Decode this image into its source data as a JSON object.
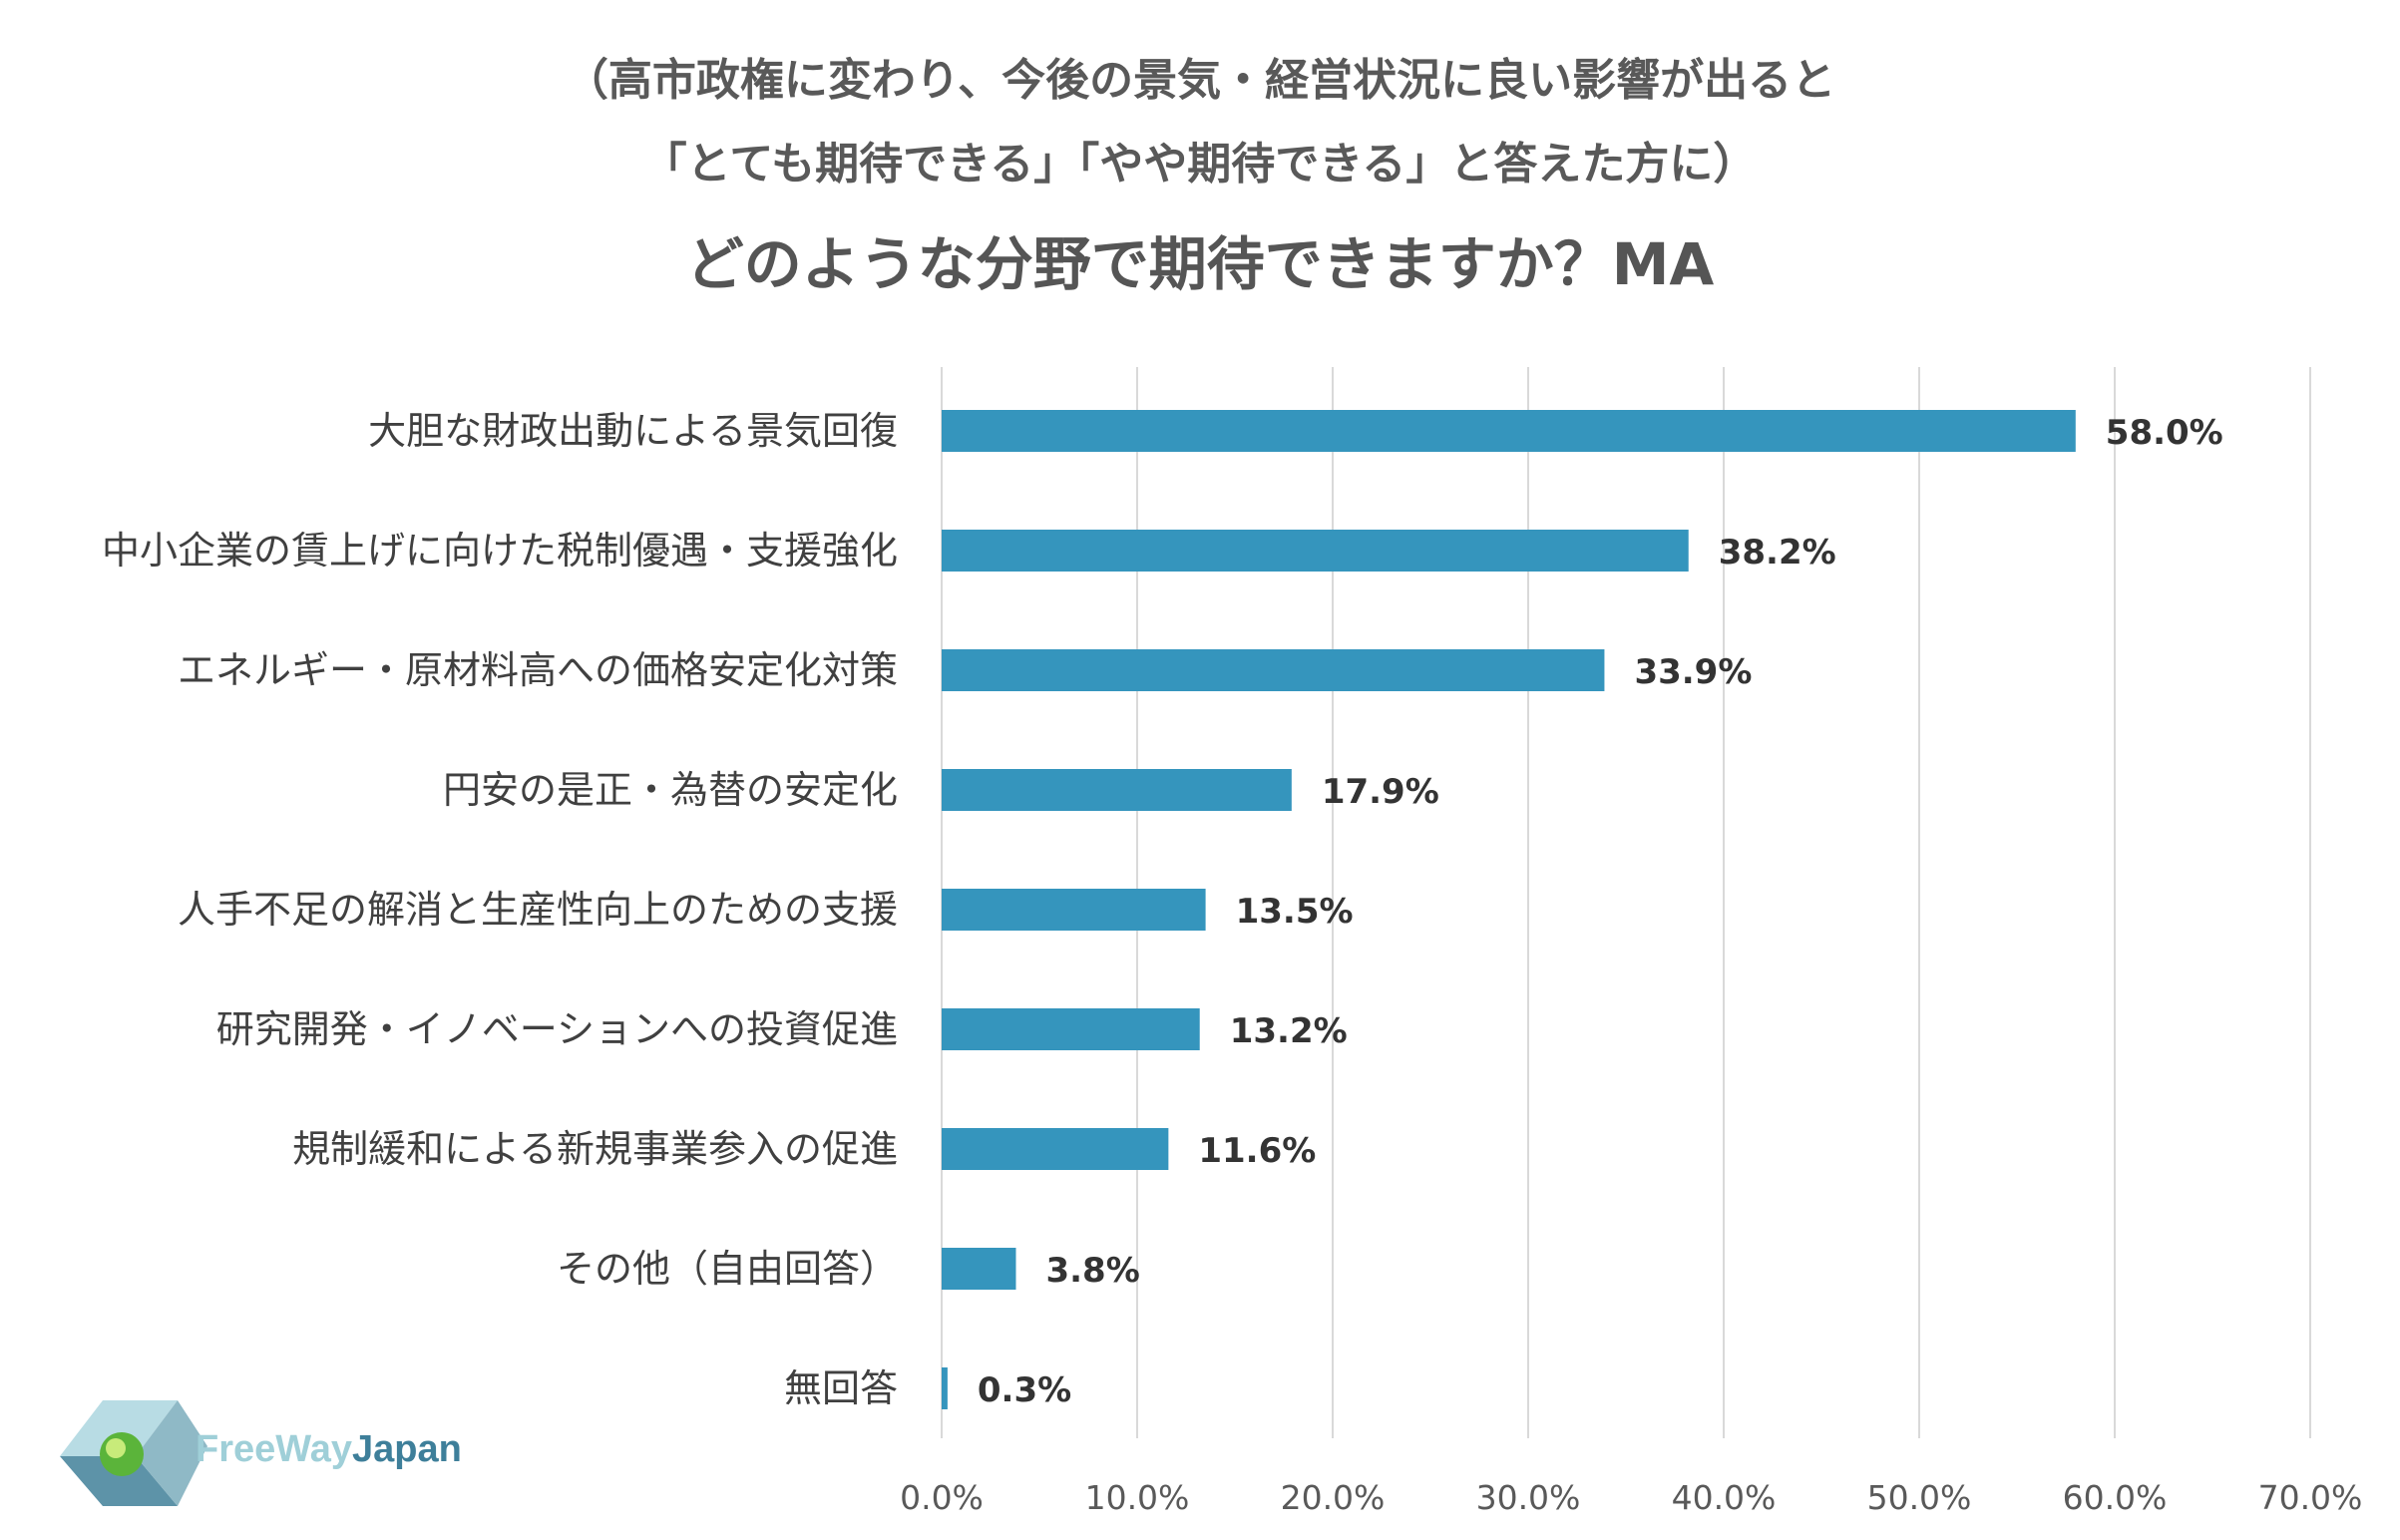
{
  "colors": {
    "bar": "#3595bd",
    "grid": "#d9d9d9",
    "logo_light": "#9fcfd8",
    "logo_dark": "#3e7f9a"
  },
  "logo": {
    "text_part1": "FreeWay",
    "text_part2": "Japan",
    "icon": "freewayjapan-logo-icon"
  },
  "chart_data": {
    "type": "bar",
    "orientation": "horizontal",
    "title_lines": [
      "（高市政権に変わり、今後の景気・経営状況に良い影響が出ると",
      "「とても期待できる」「やや期待できる」と答えた方に）",
      "どのような分野で期待できますか？MA"
    ],
    "categories": [
      "大胆な財政出動による景気回復",
      "中小企業の賃上げに向けた税制優遇・支援強化",
      "エネルギー・原材料高への価格安定化対策",
      "円安の是正・為替の安定化",
      "人手不足の解消と生産性向上のための支援",
      "研究開発・イノベーションへの投資促進",
      "規制緩和による新規事業参入の促進",
      "その他（自由回答）",
      "無回答"
    ],
    "values": [
      58.0,
      38.2,
      33.9,
      17.9,
      13.5,
      13.2,
      11.6,
      3.8,
      0.3
    ],
    "value_labels": [
      "58.0%",
      "38.2%",
      "33.9%",
      "17.9%",
      "13.5%",
      "13.2%",
      "11.6%",
      "3.8%",
      "0.3%"
    ],
    "xlim": [
      0,
      70
    ],
    "x_ticks": [
      0,
      10,
      20,
      30,
      40,
      50,
      60,
      70
    ],
    "x_tick_labels": [
      "0.0%",
      "10.0%",
      "20.0%",
      "30.0%",
      "40.0%",
      "50.0%",
      "60.0%",
      "70.0%"
    ],
    "grid": true,
    "legend": "none"
  }
}
